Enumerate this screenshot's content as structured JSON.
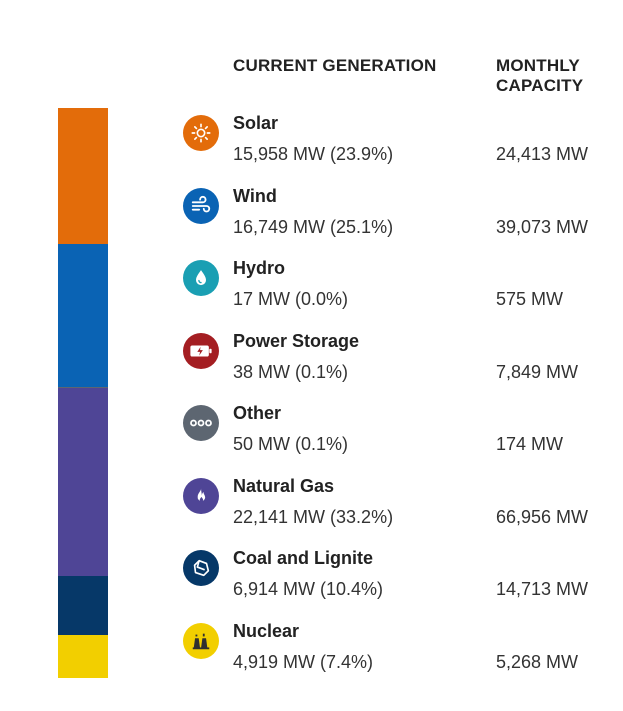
{
  "headers": {
    "current_generation": "CURRENT GENERATION",
    "monthly_capacity": "MONTHLY CAPACITY"
  },
  "sources": [
    {
      "name": "Solar",
      "generation": "15,958 MW (23.9%)",
      "capacity": "24,413 MW",
      "icon": "sun-icon",
      "color": "#e36c0a"
    },
    {
      "name": "Wind",
      "generation": "16,749 MW (25.1%)",
      "capacity": "39,073 MW",
      "icon": "wind-icon",
      "color": "#0a63b4"
    },
    {
      "name": "Hydro",
      "generation": "17 MW (0.0%)",
      "capacity": "575 MW",
      "icon": "water-drop-icon",
      "color": "#1a9fb3"
    },
    {
      "name": "Power Storage",
      "generation": "38 MW (0.1%)",
      "capacity": "7,849 MW",
      "icon": "battery-icon",
      "color": "#a41e22"
    },
    {
      "name": "Other",
      "generation": "50 MW (0.1%)",
      "capacity": "174 MW",
      "icon": "dots-icon",
      "color": "#5d6671"
    },
    {
      "name": "Natural Gas",
      "generation": "22,141 MW (33.2%)",
      "capacity": "66,956 MW",
      "icon": "flame-icon",
      "color": "#4f4596"
    },
    {
      "name": "Coal and Lignite",
      "generation": "6,914 MW (10.4%)",
      "capacity": "14,713 MW",
      "icon": "coal-icon",
      "color": "#063868"
    },
    {
      "name": "Nuclear",
      "generation": "4,919 MW (7.4%)",
      "capacity": "5,268 MW",
      "icon": "nuclear-plant-icon",
      "color": "#f2cf00"
    }
  ],
  "chart_data": {
    "type": "bar",
    "orientation": "vertical-stacked",
    "categories": [
      "Solar",
      "Wind",
      "Hydro",
      "Power Storage",
      "Other",
      "Natural Gas",
      "Coal and Lignite",
      "Nuclear"
    ],
    "series": [
      {
        "name": "CURRENT GENERATION",
        "values": [
          15958,
          16749,
          17,
          38,
          50,
          22141,
          6914,
          4919
        ],
        "percent": [
          23.9,
          25.1,
          0.0,
          0.1,
          0.1,
          33.2,
          10.4,
          7.4
        ]
      },
      {
        "name": "MONTHLY CAPACITY",
        "values": [
          24413,
          39073,
          575,
          7849,
          174,
          66956,
          14713,
          5268
        ]
      }
    ],
    "colors": [
      "#e36c0a",
      "#0a63b4",
      "#1a9fb3",
      "#a41e22",
      "#5d6671",
      "#4f4596",
      "#063868",
      "#f2cf00"
    ],
    "legend": "right"
  }
}
